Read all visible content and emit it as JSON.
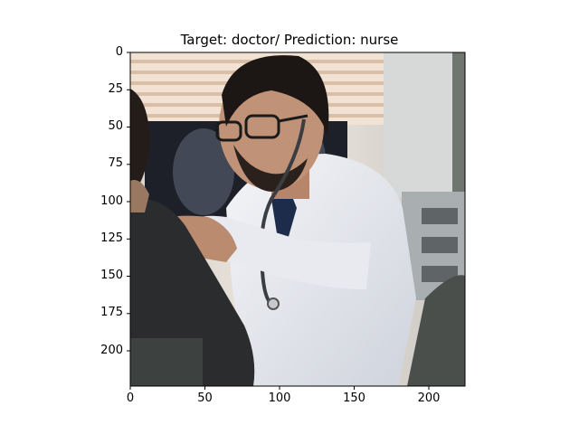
{
  "figure": {
    "title": "Target: doctor/ Prediction: nurse",
    "y_tick_labels": [
      "0",
      "25",
      "50",
      "75",
      "100",
      "125",
      "150",
      "175",
      "200"
    ],
    "x_tick_labels": [
      "0",
      "50",
      "100",
      "150",
      "200"
    ],
    "image_description_icon": "photo-doctor-patient-icon"
  },
  "chart_data": {
    "type": "image",
    "title": "Target: doctor/ Prediction: nurse",
    "x_ticks": [
      0,
      50,
      100,
      150,
      200
    ],
    "y_ticks": [
      0,
      25,
      50,
      75,
      100,
      125,
      150,
      175,
      200
    ],
    "xlim": [
      0,
      224
    ],
    "ylim": [
      224,
      0
    ]
  }
}
